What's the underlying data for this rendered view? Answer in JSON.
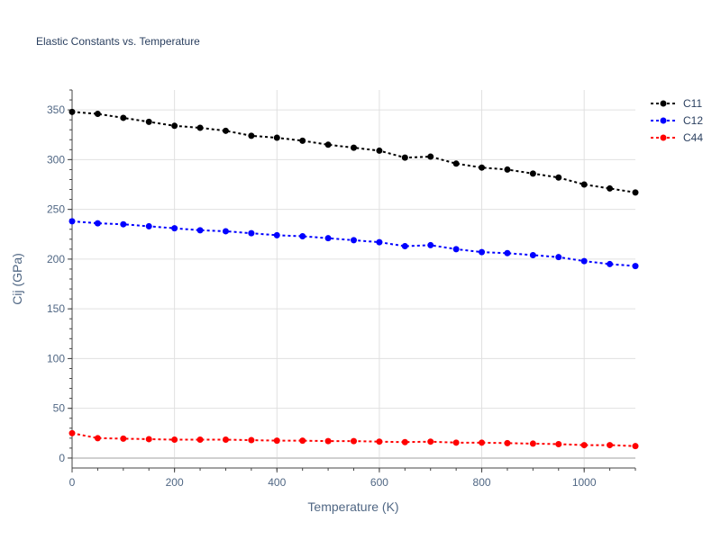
{
  "chart_data": {
    "type": "line",
    "title": "Elastic Constants vs. Temperature",
    "xlabel": "Temperature (K)",
    "ylabel": "Cij (GPa)",
    "xlim": [
      0,
      1100
    ],
    "ylim": [
      -10,
      370
    ],
    "x_ticks": [
      0,
      200,
      400,
      600,
      800,
      1000
    ],
    "y_ticks": [
      0,
      50,
      100,
      150,
      200,
      250,
      300,
      350
    ],
    "grid": true,
    "legend_position": "top-right",
    "x": [
      0,
      50,
      100,
      150,
      200,
      250,
      300,
      350,
      400,
      450,
      500,
      550,
      600,
      650,
      700,
      750,
      800,
      850,
      900,
      950,
      1000,
      1050,
      1100
    ],
    "series": [
      {
        "name": "C11",
        "color": "#000000",
        "values": [
          348,
          346,
          342,
          338,
          334,
          332,
          329,
          324,
          322,
          319,
          315,
          312,
          309,
          302,
          303,
          296,
          292,
          290,
          286,
          282,
          275,
          271,
          267
        ]
      },
      {
        "name": "C12",
        "color": "#0000ff",
        "values": [
          238,
          236,
          235,
          233,
          231,
          229,
          228,
          226,
          224,
          223,
          221,
          219,
          217,
          213,
          214,
          210,
          207,
          206,
          204,
          202,
          198,
          195,
          193
        ]
      },
      {
        "name": "C44",
        "color": "#ff0000",
        "values": [
          25,
          20,
          19.5,
          19,
          18.5,
          18.5,
          18.5,
          18,
          17.5,
          17.5,
          17,
          17,
          16.5,
          16,
          16.5,
          15.5,
          15.5,
          15,
          14.5,
          14,
          13,
          13,
          12
        ]
      }
    ]
  }
}
